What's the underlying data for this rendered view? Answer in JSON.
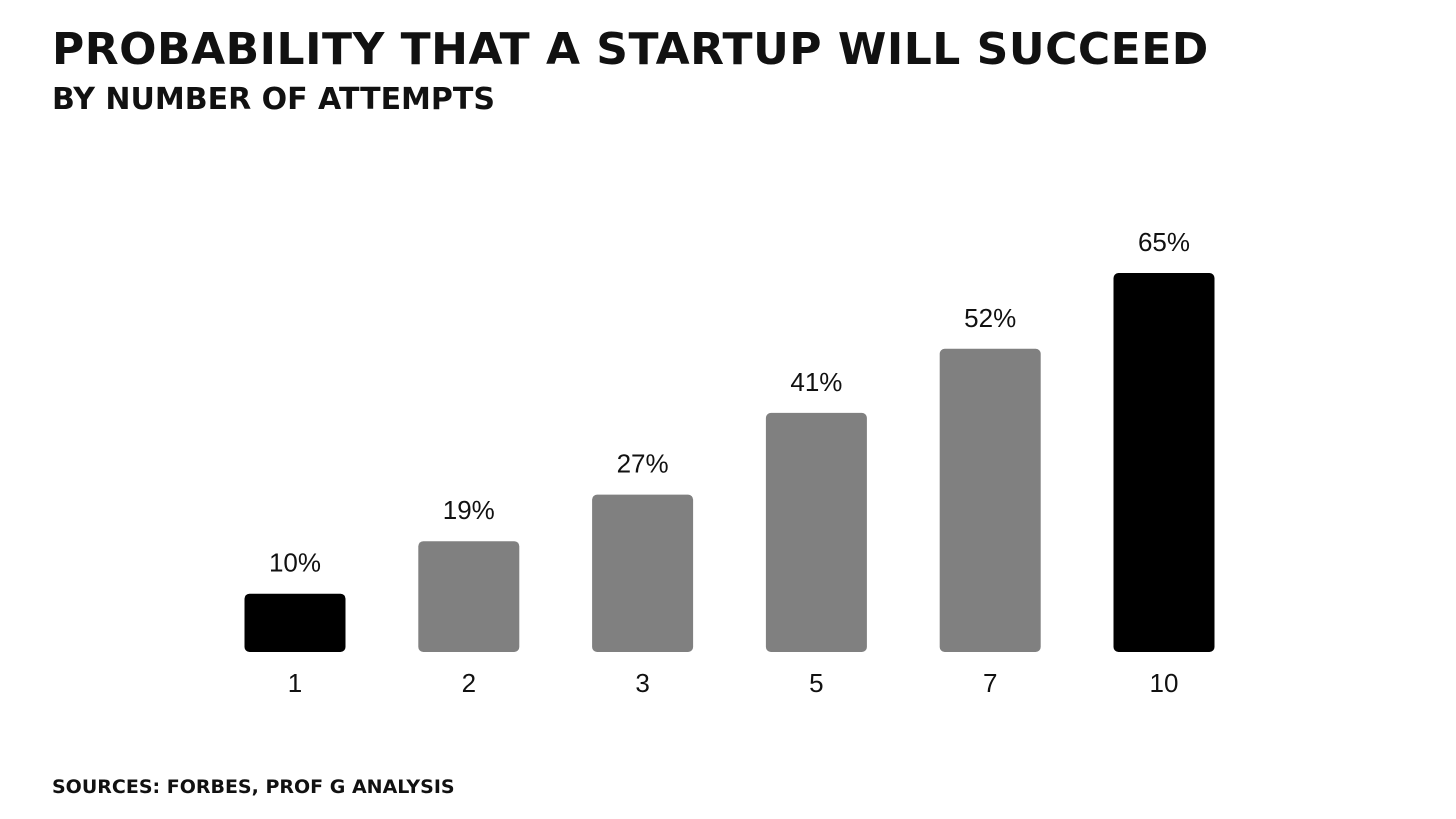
{
  "chart_data": {
    "type": "bar",
    "title": "PROBABILITY THAT A STARTUP WILL SUCCEED",
    "subtitle": "BY NUMBER OF ATTEMPTS",
    "xlabel": "",
    "ylabel": "",
    "categories": [
      "1",
      "2",
      "3",
      "5",
      "7",
      "10"
    ],
    "values": [
      10,
      19,
      27,
      41,
      52,
      65
    ],
    "data_labels": [
      "10%",
      "19%",
      "27%",
      "41%",
      "52%",
      "65%"
    ],
    "bar_colors": [
      "#000000",
      "#808080",
      "#808080",
      "#808080",
      "#808080",
      "#000000"
    ],
    "ylim": [
      0,
      65
    ],
    "grid": false,
    "source": "SOURCES: FORBES, PROF G ANALYSIS"
  }
}
